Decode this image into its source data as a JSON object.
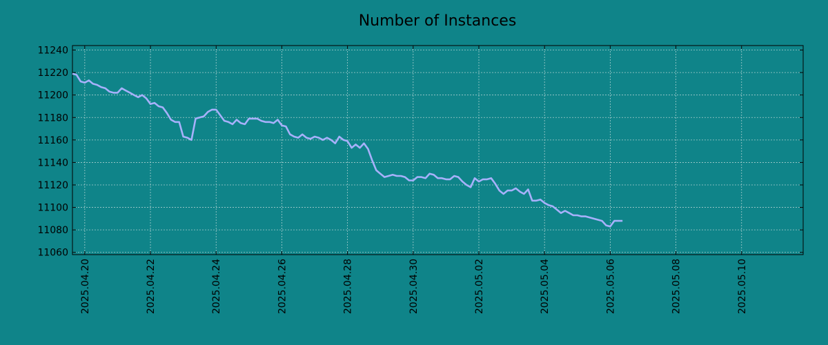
{
  "chart_data": {
    "type": "line",
    "title": "Number of Instances",
    "xlabel": "",
    "ylabel": "",
    "grid": true,
    "background": "#0f8489",
    "line_color": "#a7b1fb",
    "x_start": "2025.04.19 15:00",
    "x_step_hours": 3,
    "xlim": [
      "2025.04.19 15:00",
      "2025.05.11 21:00"
    ],
    "ylim": [
      11058,
      11244
    ],
    "x_ticks": [
      "2025.04.20",
      "2025.04.22",
      "2025.04.24",
      "2025.04.26",
      "2025.04.28",
      "2025.04.30",
      "2025.05.02",
      "2025.05.04",
      "2025.05.06",
      "2025.05.08",
      "2025.05.10"
    ],
    "y_ticks": [
      11060,
      11080,
      11100,
      11120,
      11140,
      11160,
      11180,
      11200,
      11220,
      11240
    ],
    "series": [
      {
        "values": [
          11219,
          11218,
          11212,
          11211,
          11213,
          11210,
          11209,
          11207,
          11206,
          11203,
          11202,
          11202,
          11206,
          11204,
          11202,
          11200,
          11198,
          11200,
          11197,
          11192,
          11193,
          11190,
          11189,
          11184,
          11178,
          11176,
          11176,
          11163,
          11162,
          11160,
          11179,
          11180,
          11181,
          11185,
          11187,
          11187,
          11182,
          11177,
          11176,
          11174,
          11178,
          11175,
          11174,
          11179,
          11179,
          11179,
          11177,
          11176,
          11176,
          11175,
          11178,
          11173,
          11172,
          11165,
          11163,
          11162,
          11165,
          11162,
          11161,
          11163,
          11162,
          11160,
          11162,
          11160,
          11157,
          11163,
          11160,
          11159,
          11153,
          11156,
          11153,
          11157,
          11152,
          11142,
          11133,
          11130,
          11127,
          11128,
          11129,
          11128,
          11128,
          11127,
          11124,
          11124,
          11127,
          11127,
          11126,
          11130,
          11129,
          11126,
          11126,
          11125,
          11125,
          11128,
          11127,
          11123,
          11120,
          11118,
          11126,
          11123,
          11125,
          11125,
          11126,
          11121,
          11115,
          11112,
          11115,
          11115,
          11117,
          11114,
          11112,
          11116,
          11106,
          11106,
          11107,
          11104,
          11102,
          11101,
          11098,
          11095,
          11097,
          11095,
          11093,
          11093,
          11092,
          11092,
          11091,
          11090,
          11089,
          11088,
          11084,
          11083,
          11088,
          11088,
          11088
        ]
      }
    ]
  }
}
